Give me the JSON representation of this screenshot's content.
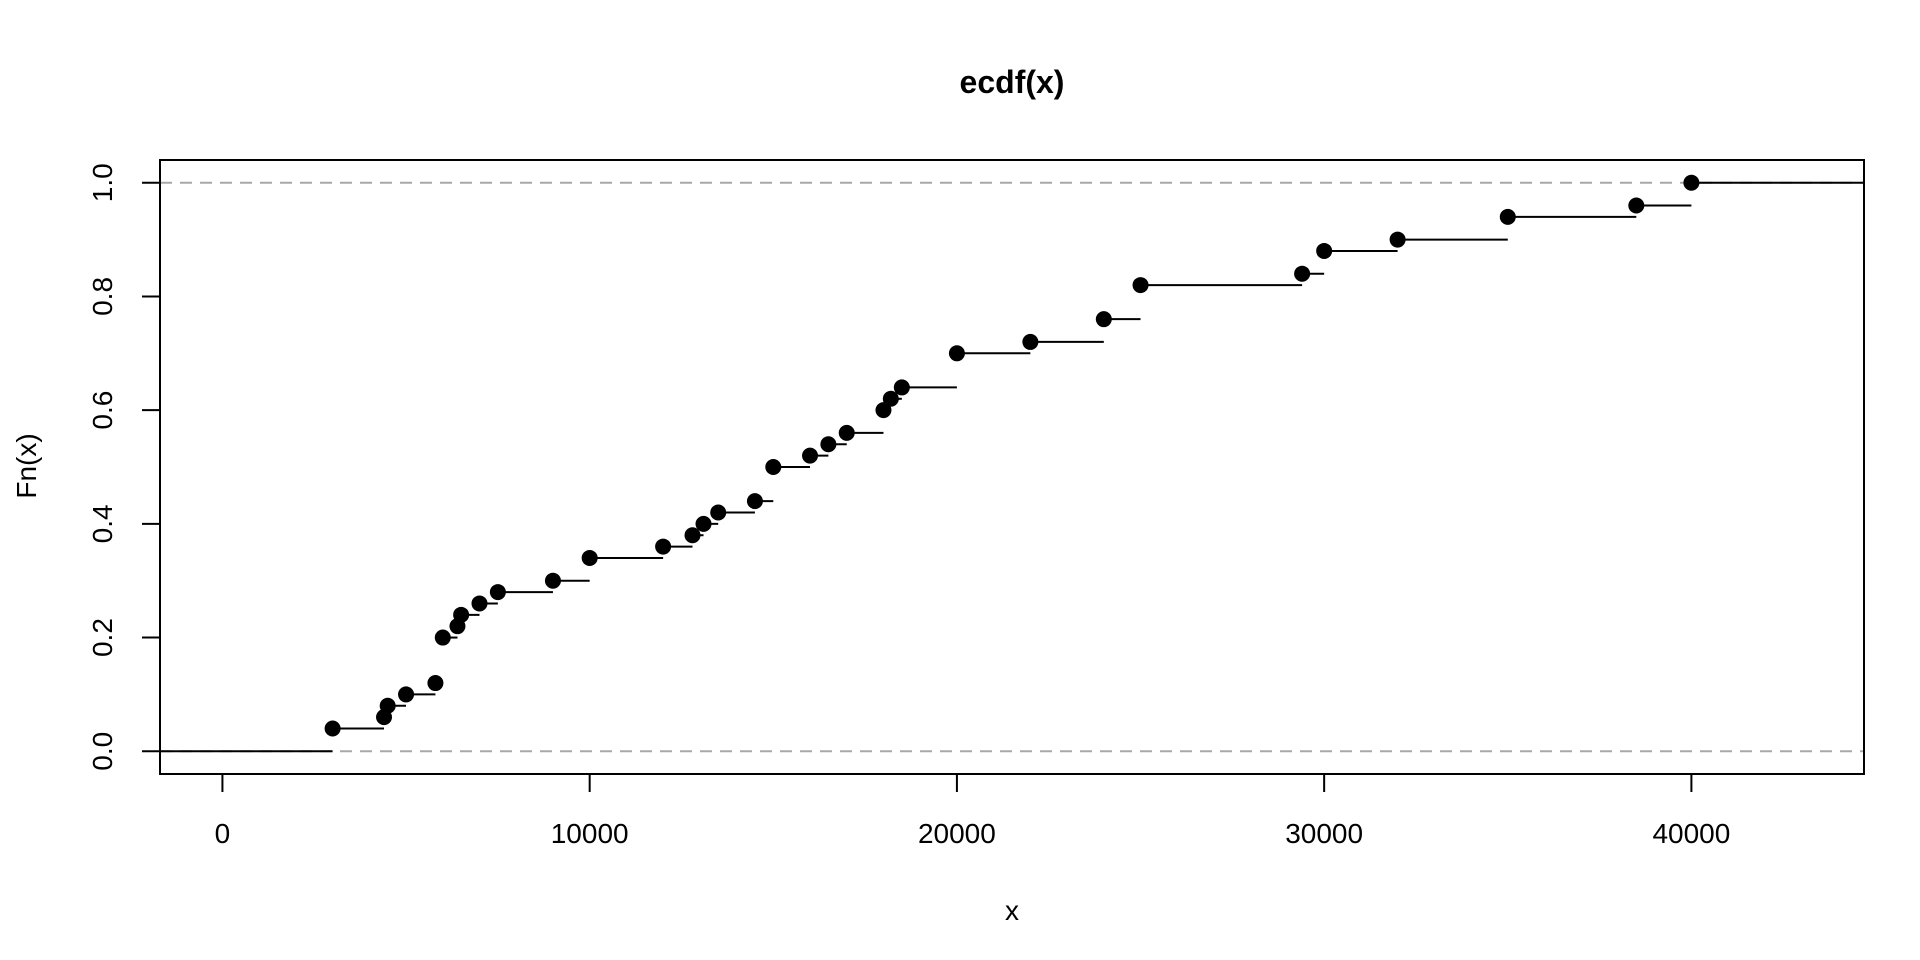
{
  "chart_data": {
    "type": "line",
    "subtype": "ecdf-step",
    "title": "ecdf(x)",
    "xlabel": "x",
    "ylabel": "Fn(x)",
    "xlim": [
      -1700,
      44700
    ],
    "ylim": [
      -0.04,
      1.04
    ],
    "x_ticks": [
      0,
      10000,
      20000,
      30000,
      40000
    ],
    "y_ticks": [
      0.0,
      0.2,
      0.4,
      0.6,
      0.8,
      1.0
    ],
    "x_tick_labels": [
      "0",
      "10000",
      "20000",
      "30000",
      "40000"
    ],
    "y_tick_labels": [
      "0.0",
      "0.2",
      "0.4",
      "0.6",
      "0.8",
      "1.0"
    ],
    "reference_lines": [
      0,
      1
    ],
    "points": [
      {
        "x": 3000,
        "y": 0.04
      },
      {
        "x": 4400,
        "y": 0.06
      },
      {
        "x": 4500,
        "y": 0.08
      },
      {
        "x": 5000,
        "y": 0.1
      },
      {
        "x": 5800,
        "y": 0.12
      },
      {
        "x": 6000,
        "y": 0.2
      },
      {
        "x": 6400,
        "y": 0.22
      },
      {
        "x": 6500,
        "y": 0.24
      },
      {
        "x": 7000,
        "y": 0.26
      },
      {
        "x": 7500,
        "y": 0.28
      },
      {
        "x": 9000,
        "y": 0.3
      },
      {
        "x": 10000,
        "y": 0.34
      },
      {
        "x": 12000,
        "y": 0.36
      },
      {
        "x": 12800,
        "y": 0.38
      },
      {
        "x": 13100,
        "y": 0.4
      },
      {
        "x": 13500,
        "y": 0.42
      },
      {
        "x": 14500,
        "y": 0.44
      },
      {
        "x": 15000,
        "y": 0.5
      },
      {
        "x": 16000,
        "y": 0.52
      },
      {
        "x": 16500,
        "y": 0.54
      },
      {
        "x": 17000,
        "y": 0.56
      },
      {
        "x": 18000,
        "y": 0.6
      },
      {
        "x": 18200,
        "y": 0.62
      },
      {
        "x": 18500,
        "y": 0.64
      },
      {
        "x": 20000,
        "y": 0.7
      },
      {
        "x": 22000,
        "y": 0.72
      },
      {
        "x": 24000,
        "y": 0.76
      },
      {
        "x": 25000,
        "y": 0.82
      },
      {
        "x": 29400,
        "y": 0.84
      },
      {
        "x": 30000,
        "y": 0.88
      },
      {
        "x": 32000,
        "y": 0.9
      },
      {
        "x": 35000,
        "y": 0.94
      },
      {
        "x": 38500,
        "y": 0.96
      },
      {
        "x": 40000,
        "y": 1.0
      }
    ],
    "grid": false,
    "legend": "none",
    "colors": {
      "line": "#000000",
      "point": "#000000",
      "reference": "#a8a8a8",
      "frame": "#000000"
    }
  }
}
